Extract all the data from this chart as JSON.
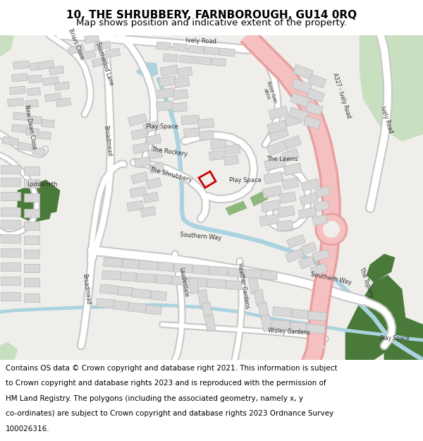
{
  "title": "10, THE SHRUBBERY, FARNBOROUGH, GU14 0RQ",
  "subtitle": "Map shows position and indicative extent of the property.",
  "footer_lines": [
    "Contains OS data © Crown copyright and database right 2021. This information is subject",
    "to Crown copyright and database rights 2023 and is reproduced with the permission of",
    "HM Land Registry. The polygons (including the associated geometry, namely x, y",
    "co-ordinates) are subject to Crown copyright and database rights 2023 Ordnance Survey",
    "100026316."
  ],
  "title_fontsize": 11,
  "subtitle_fontsize": 9.5,
  "footer_fontsize": 7.5,
  "bg_color": "#f0eeeb",
  "primary_road_fill": "#f5c0c0",
  "primary_road_edge": "#e8a0a0",
  "road_fill": "#ffffff",
  "road_edge": "#c8c8c8",
  "water_color": "#aad3df",
  "water_fill": "#aad3df",
  "light_green": "#c8dfc0",
  "mid_green": "#8cb87a",
  "dark_green": "#4a7a3a",
  "building_fill": "#d8d8d8",
  "building_edge": "#b8b8b8",
  "plot_edge": "#cc0000",
  "white": "#ffffff",
  "text_color": "#333333",
  "title_bg": "#ffffff",
  "footer_bg": "#ffffff"
}
